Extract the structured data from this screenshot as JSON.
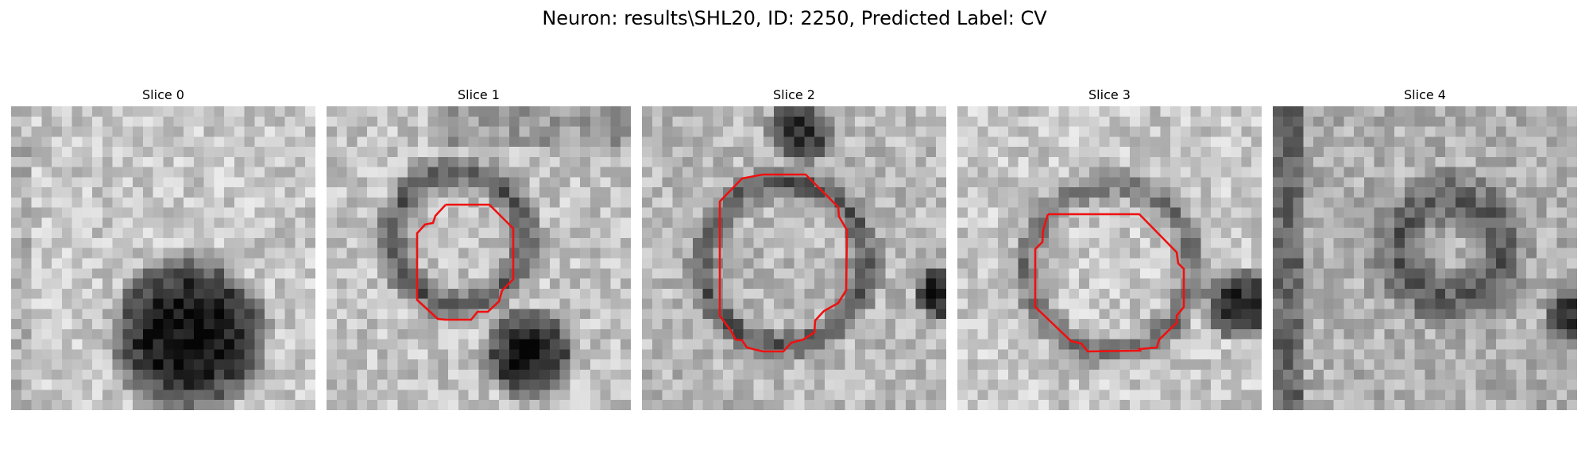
{
  "figure": {
    "title": "Neuron: results\\SHL20, ID: 2250, Predicted Label: CV",
    "contour_color": "#ee1111"
  },
  "slices": [
    {
      "title": "Slice 0",
      "has_contour": false
    },
    {
      "title": "Slice 1",
      "has_contour": true
    },
    {
      "title": "Slice 2",
      "has_contour": true
    },
    {
      "title": "Slice 3",
      "has_contour": true
    },
    {
      "title": "Slice 4",
      "has_contour": false
    }
  ]
}
